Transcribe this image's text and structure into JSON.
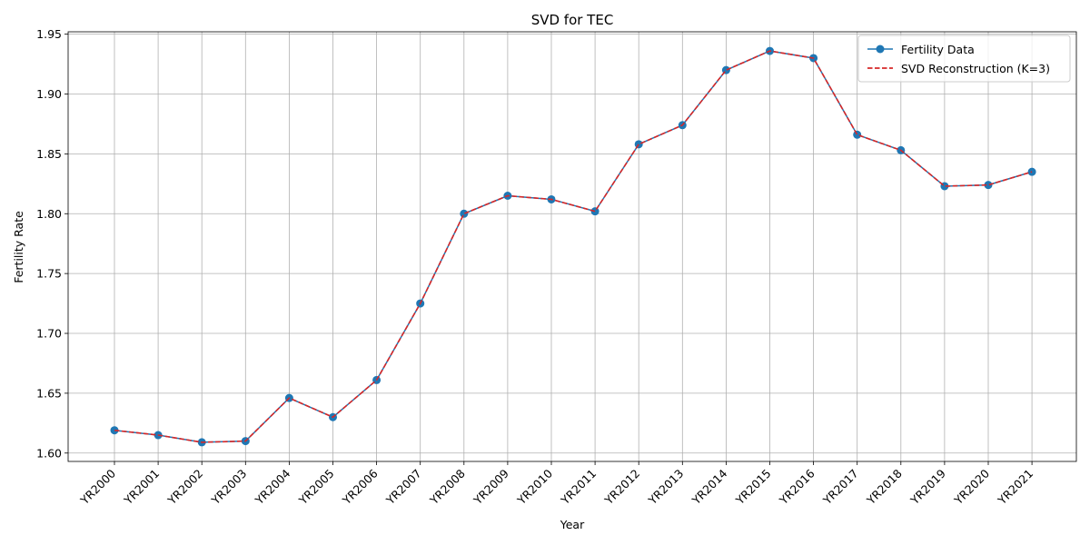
{
  "chart_data": {
    "type": "line",
    "title": "SVD for TEC",
    "xlabel": "Year",
    "ylabel": "Fertility Rate",
    "categories": [
      "YR2000",
      "YR2001",
      "YR2002",
      "YR2003",
      "YR2004",
      "YR2005",
      "YR2006",
      "YR2007",
      "YR2008",
      "YR2009",
      "YR2010",
      "YR2011",
      "YR2012",
      "YR2013",
      "YR2014",
      "YR2015",
      "YR2016",
      "YR2017",
      "YR2018",
      "YR2019",
      "YR2020",
      "YR2021"
    ],
    "ylim": [
      1.593,
      1.952
    ],
    "yticks": [
      "1.60",
      "1.65",
      "1.70",
      "1.75",
      "1.80",
      "1.85",
      "1.90",
      "1.95"
    ],
    "grid": true,
    "legend_position": "top-right",
    "series": [
      {
        "name": "Fertility Data",
        "color": "#1f77b4",
        "style": "solid-markers",
        "values": [
          1.619,
          1.615,
          1.609,
          1.61,
          1.646,
          1.63,
          1.661,
          1.725,
          1.8,
          1.815,
          1.812,
          1.802,
          1.858,
          1.874,
          1.92,
          1.936,
          1.93,
          1.866,
          1.853,
          1.823,
          1.824,
          1.835
        ]
      },
      {
        "name": "SVD Reconstruction (K=3)",
        "color": "#d62728",
        "style": "dashed",
        "values": [
          1.619,
          1.615,
          1.609,
          1.61,
          1.646,
          1.63,
          1.661,
          1.725,
          1.8,
          1.815,
          1.812,
          1.802,
          1.858,
          1.874,
          1.92,
          1.936,
          1.93,
          1.866,
          1.853,
          1.823,
          1.824,
          1.835
        ]
      }
    ]
  }
}
